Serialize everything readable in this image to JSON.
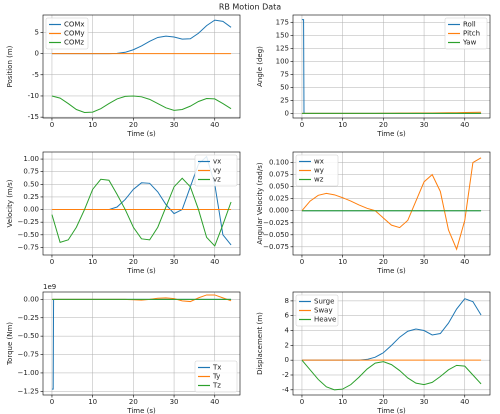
{
  "title": "RB Motion Data",
  "chart_data": [
    {
      "type": "line",
      "xlabel": "Time (s)",
      "ylabel": "Position (m)",
      "x": [
        0,
        2,
        4,
        6,
        8,
        10,
        12,
        14,
        16,
        18,
        20,
        22,
        24,
        26,
        28,
        30,
        32,
        34,
        36,
        38,
        40,
        42,
        44
      ],
      "xlim": [
        -2.2,
        46.2
      ],
      "xticks": [
        0,
        10,
        20,
        30,
        40
      ],
      "ylim": [
        -15.2,
        9.1
      ],
      "yticks": [
        -15,
        -10,
        -5,
        0,
        5
      ],
      "grid": true,
      "legend": "upper left",
      "series": [
        {
          "name": "COMx",
          "color": "#1f77b4",
          "values": [
            0,
            0,
            0,
            0,
            0,
            0,
            0,
            0,
            0.05,
            0.3,
            0.9,
            1.8,
            2.9,
            3.8,
            4.1,
            3.9,
            3.4,
            3.5,
            4.8,
            6.6,
            7.9,
            7.6,
            6.2
          ]
        },
        {
          "name": "COMy",
          "color": "#ff7f0e",
          "values": [
            0,
            0,
            0,
            0,
            0,
            0,
            0,
            0,
            0,
            0,
            0,
            0,
            0,
            0,
            0,
            0,
            0,
            0,
            0,
            0,
            0,
            0,
            0
          ]
        },
        {
          "name": "COMz",
          "color": "#2ca02c",
          "values": [
            -10,
            -10.5,
            -11.8,
            -13.2,
            -13.9,
            -13.8,
            -13,
            -11.8,
            -10.7,
            -10.1,
            -10,
            -10.2,
            -10.8,
            -11.8,
            -12.8,
            -13.4,
            -13.2,
            -12.4,
            -11.3,
            -10.6,
            -10.7,
            -11.8,
            -13
          ]
        }
      ]
    },
    {
      "type": "line",
      "xlabel": "Time (s)",
      "ylabel": "Angle (deg)",
      "x": [
        0,
        0.4,
        0.5,
        2,
        4,
        6,
        8,
        10,
        12,
        14,
        16,
        18,
        20,
        22,
        24,
        26,
        28,
        30,
        32,
        34,
        36,
        38,
        40,
        42,
        44
      ],
      "xlim": [
        -2.2,
        46.2
      ],
      "xticks": [
        0,
        10,
        20,
        30,
        40
      ],
      "ylim": [
        -9,
        189
      ],
      "yticks": [
        0,
        25,
        50,
        75,
        100,
        125,
        150,
        175
      ],
      "grid": true,
      "legend": "upper right",
      "series": [
        {
          "name": "Roll",
          "color": "#1f77b4",
          "values": [
            180,
            180,
            0,
            0,
            0,
            0,
            0,
            0,
            0,
            0,
            0,
            0,
            0,
            0,
            0,
            0,
            0,
            0,
            0,
            0,
            0,
            0,
            0,
            0,
            0
          ]
        },
        {
          "name": "Pitch",
          "color": "#ff7f0e",
          "values": [
            0,
            0,
            0,
            0,
            0,
            0,
            0,
            0,
            0,
            0,
            0,
            0,
            0.1,
            0.2,
            0.3,
            0.4,
            0.5,
            0.6,
            0.7,
            0.8,
            1,
            1.2,
            1.5,
            1.8,
            2
          ]
        },
        {
          "name": "Yaw",
          "color": "#2ca02c",
          "values": [
            0,
            0,
            0,
            0,
            0,
            0,
            0,
            0,
            0,
            0,
            0,
            0,
            0,
            0,
            0,
            0,
            0,
            0,
            0,
            0,
            0,
            0,
            0,
            0,
            0
          ]
        }
      ]
    },
    {
      "type": "line",
      "xlabel": "Time (s)",
      "ylabel": "Velocity (m/s)",
      "x": [
        0,
        2,
        4,
        6,
        8,
        10,
        12,
        14,
        16,
        18,
        20,
        22,
        24,
        26,
        28,
        30,
        32,
        34,
        36,
        38,
        40,
        42,
        44
      ],
      "xlim": [
        -2.2,
        46.2
      ],
      "xticks": [
        0,
        10,
        20,
        30,
        40
      ],
      "ylim": [
        -0.9,
        1.14
      ],
      "yticks": [
        {
          "value": -0.75,
          "label": "−0.75"
        },
        {
          "value": -0.5,
          "label": "−0.50"
        },
        {
          "value": -0.25,
          "label": "−0.25"
        },
        {
          "value": 0,
          "label": "0.00"
        },
        {
          "value": 0.25,
          "label": "0.25"
        },
        {
          "value": 0.5,
          "label": "0.50"
        },
        {
          "value": 0.75,
          "label": "0.75"
        },
        {
          "value": 1,
          "label": "1.00"
        }
      ],
      "grid": true,
      "legend": "upper right",
      "series": [
        {
          "name": "vx",
          "color": "#1f77b4",
          "values": [
            0,
            0,
            0,
            0,
            0,
            0,
            0,
            0,
            0.05,
            0.2,
            0.4,
            0.53,
            0.52,
            0.35,
            0.1,
            -0.08,
            0,
            0.45,
            0.9,
            1.05,
            0.5,
            -0.5,
            -0.7
          ]
        },
        {
          "name": "vy",
          "color": "#ff7f0e",
          "values": [
            0,
            0,
            0,
            0,
            0,
            0,
            0,
            0,
            0,
            0,
            0,
            0,
            0,
            0,
            0,
            0,
            0,
            0,
            0,
            0,
            0,
            0,
            0
          ]
        },
        {
          "name": "vz",
          "color": "#2ca02c",
          "values": [
            -0.1,
            -0.65,
            -0.6,
            -0.35,
            0,
            0.4,
            0.6,
            0.58,
            0.3,
            0,
            -0.35,
            -0.58,
            -0.6,
            -0.35,
            0.05,
            0.45,
            0.62,
            0.45,
            0,
            -0.55,
            -0.72,
            -0.3,
            0.15
          ]
        }
      ]
    },
    {
      "type": "line",
      "xlabel": "Time (s)",
      "ylabel": "Angular Velocity (rad/s)",
      "x": [
        0,
        2,
        4,
        6,
        8,
        10,
        12,
        14,
        16,
        18,
        20,
        22,
        24,
        26,
        28,
        30,
        32,
        34,
        36,
        38,
        40,
        42,
        44
      ],
      "xlim": [
        -2.2,
        46.2
      ],
      "xticks": [
        0,
        10,
        20,
        30,
        40
      ],
      "ylim": [
        -0.092,
        0.122
      ],
      "yticks": [
        {
          "value": -0.075,
          "label": "−0.075"
        },
        {
          "value": -0.05,
          "label": "−0.050"
        },
        {
          "value": -0.025,
          "label": "−0.025"
        },
        {
          "value": 0,
          "label": "0.000"
        },
        {
          "value": 0.025,
          "label": "0.025"
        },
        {
          "value": 0.05,
          "label": "0.050"
        },
        {
          "value": 0.075,
          "label": "0.075"
        },
        {
          "value": 0.1,
          "label": "0.100"
        }
      ],
      "grid": true,
      "legend": "upper left",
      "series": [
        {
          "name": "wx",
          "color": "#1f77b4",
          "values": [
            0,
            0,
            0,
            0,
            0,
            0,
            0,
            0,
            0,
            0,
            0,
            0,
            0,
            0,
            0,
            0,
            0,
            0,
            0,
            0,
            0,
            0,
            0
          ]
        },
        {
          "name": "wy",
          "color": "#ff7f0e",
          "values": [
            0,
            0.02,
            0.032,
            0.036,
            0.033,
            0.027,
            0.02,
            0.012,
            0.005,
            0,
            -0.015,
            -0.03,
            -0.035,
            -0.02,
            0.02,
            0.06,
            0.075,
            0.04,
            -0.04,
            -0.08,
            -0.02,
            0.1,
            0.11
          ]
        },
        {
          "name": "wz",
          "color": "#2ca02c",
          "values": [
            0,
            0,
            0,
            0,
            0,
            0,
            0,
            0,
            0,
            0,
            0,
            0,
            0,
            0,
            0,
            0,
            0,
            0,
            0,
            0,
            0,
            0,
            0
          ]
        }
      ]
    },
    {
      "type": "line",
      "xlabel": "Time (s)",
      "ylabel": "Torque (Nm)",
      "offset_label": "1e9",
      "x": [
        0,
        0.3,
        0.4,
        2,
        4,
        6,
        8,
        10,
        12,
        14,
        16,
        18,
        20,
        22,
        24,
        26,
        28,
        30,
        32,
        34,
        36,
        38,
        40,
        42,
        44
      ],
      "xlim": [
        -2.2,
        46.2
      ],
      "xticks": [
        0,
        10,
        20,
        30,
        40
      ],
      "ylim": [
        -1.3,
        0.1
      ],
      "yticks": [
        {
          "value": -1.25,
          "label": "−1.25"
        },
        {
          "value": -1,
          "label": "−1.00"
        },
        {
          "value": -0.75,
          "label": "−0.75"
        },
        {
          "value": -0.5,
          "label": "−0.50"
        },
        {
          "value": -0.25,
          "label": "−0.25"
        },
        {
          "value": 0,
          "label": "0.00"
        }
      ],
      "grid": true,
      "legend": "lower right",
      "series": [
        {
          "name": "Tx",
          "color": "#1f77b4",
          "values": [
            -1.22,
            -1.22,
            0,
            0,
            0,
            0,
            0,
            0,
            0,
            0,
            0,
            0,
            0,
            0,
            0,
            0,
            0,
            0,
            0,
            0,
            0,
            0,
            0,
            0,
            0
          ]
        },
        {
          "name": "Ty",
          "color": "#ff7f0e",
          "values": [
            0,
            0,
            0,
            0,
            0,
            0,
            0,
            0,
            0,
            0,
            0,
            0,
            -0.005,
            -0.01,
            0,
            0.015,
            0.02,
            0.01,
            -0.02,
            -0.03,
            0.02,
            0.06,
            0.06,
            0.02,
            -0.02
          ]
        },
        {
          "name": "Tz",
          "color": "#2ca02c",
          "values": [
            0,
            0,
            0,
            0,
            0,
            0,
            0,
            0,
            0,
            0,
            0,
            0,
            0,
            0,
            0,
            0,
            0,
            0,
            0,
            0,
            0,
            0,
            0,
            0,
            0
          ]
        }
      ]
    },
    {
      "type": "line",
      "xlabel": "Time (s)",
      "ylabel": "Displacement (m)",
      "x": [
        0,
        2,
        4,
        6,
        8,
        10,
        12,
        14,
        16,
        18,
        20,
        22,
        24,
        26,
        28,
        30,
        32,
        34,
        36,
        38,
        40,
        42,
        44
      ],
      "xlim": [
        -2.2,
        46.2
      ],
      "xticks": [
        0,
        10,
        20,
        30,
        40
      ],
      "ylim": [
        -4.7,
        9.2
      ],
      "yticks": [
        -4,
        -2,
        0,
        2,
        4,
        6,
        8
      ],
      "grid": true,
      "legend": "upper left",
      "series": [
        {
          "name": "Surge",
          "color": "#1f77b4",
          "values": [
            0,
            0,
            0,
            0,
            0,
            0,
            0,
            0,
            0.1,
            0.4,
            1,
            2,
            3.1,
            3.9,
            4.2,
            4,
            3.4,
            3.6,
            5,
            6.9,
            8.3,
            7.9,
            6.1
          ]
        },
        {
          "name": "Sway",
          "color": "#ff7f0e",
          "values": [
            0,
            0,
            0,
            0,
            0,
            0,
            0,
            0,
            0,
            0,
            0,
            0,
            0,
            0,
            0,
            0,
            0,
            0,
            0,
            0,
            0,
            0,
            0
          ]
        },
        {
          "name": "Heave",
          "color": "#2ca02c",
          "values": [
            0,
            -1.3,
            -2.6,
            -3.6,
            -4,
            -3.9,
            -3.3,
            -2.3,
            -1.2,
            -0.4,
            -0.2,
            -0.6,
            -1.4,
            -2.4,
            -3.1,
            -3.3,
            -3,
            -2.2,
            -1.3,
            -0.7,
            -0.8,
            -2,
            -3.2
          ]
        }
      ]
    }
  ]
}
